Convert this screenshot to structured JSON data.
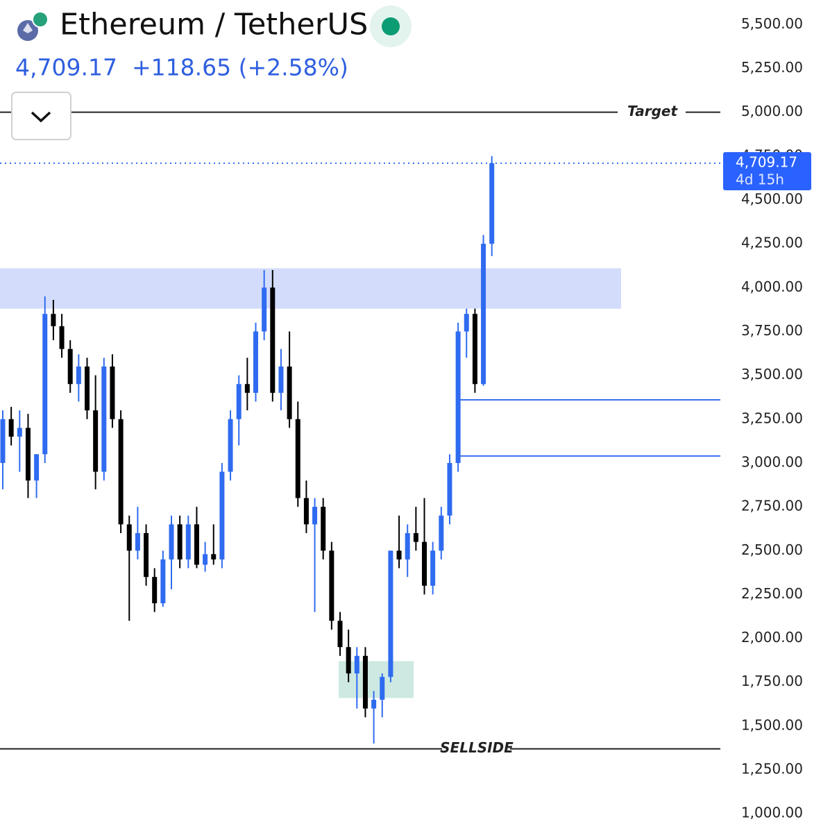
{
  "header": {
    "symbol": "Ethereum / TetherUS",
    "change": "+118.65 (+2.58%)"
  },
  "chart_data": {
    "type": "candlestick",
    "open": [
      3000,
      3250,
      3150,
      3200,
      2900,
      3050,
      3850,
      3780,
      3650,
      3450,
      3550,
      3300,
      2950,
      3550,
      3250,
      2650,
      2500,
      2600,
      2350,
      2200,
      2450,
      2650,
      2450,
      2650,
      2420,
      2480,
      2450,
      2950,
      3250,
      3450,
      3400,
      3750,
      4000,
      3400,
      3550,
      3250,
      2800,
      2650,
      2750,
      2500,
      2100,
      1950,
      1800,
      1900,
      1600,
      1650,
      1780,
      2500,
      2450,
      2600,
      2550,
      2300,
      2500,
      2700,
      3000,
      3750,
      3850,
      3450,
      4250
    ],
    "high": [
      3300,
      3320,
      3300,
      3280,
      3050,
      3950,
      3930,
      3850,
      3700,
      3620,
      3600,
      3500,
      3600,
      3620,
      3300,
      2700,
      2750,
      2650,
      2400,
      2500,
      2700,
      2700,
      2700,
      2750,
      2550,
      2650,
      3000,
      3300,
      3500,
      3600,
      3800,
      4100,
      4100,
      3650,
      3750,
      3350,
      2900,
      2800,
      2800,
      2550,
      2150,
      2050,
      1950,
      1950,
      1700,
      1800,
      2500,
      2700,
      2650,
      2750,
      2800,
      2550,
      2750,
      3050,
      3800,
      3880,
      3880,
      4300,
      4750
    ],
    "low": [
      2850,
      3100,
      2950,
      2800,
      2800,
      3000,
      3700,
      3600,
      3400,
      3350,
      3250,
      2850,
      2900,
      3200,
      2600,
      2100,
      2450,
      2300,
      2150,
      2180,
      2280,
      2400,
      2400,
      2400,
      2380,
      2420,
      2400,
      2900,
      3100,
      3300,
      3350,
      3700,
      3350,
      3300,
      3200,
      2750,
      2600,
      2150,
      2450,
      2050,
      1900,
      1750,
      1600,
      1550,
      1400,
      1550,
      1750,
      2400,
      2350,
      2500,
      2250,
      2250,
      2450,
      2650,
      2950,
      3600,
      3400,
      3440,
      4180
    ],
    "close": [
      3250,
      3150,
      3200,
      2900,
      3050,
      3850,
      3780,
      3650,
      3450,
      3550,
      3300,
      2950,
      3550,
      3250,
      2650,
      2500,
      2600,
      2350,
      2200,
      2450,
      2650,
      2450,
      2650,
      2420,
      2480,
      2450,
      2950,
      3250,
      3450,
      3400,
      3750,
      4000,
      3400,
      3550,
      3250,
      2800,
      2650,
      2750,
      2500,
      2100,
      1950,
      1800,
      1900,
      1600,
      1650,
      1780,
      2500,
      2450,
      2600,
      2550,
      2300,
      2500,
      2700,
      3000,
      3750,
      3850,
      3450,
      4250,
      4709.17
    ],
    "up_color": "#2f6bf0",
    "down_color": "#000000",
    "ylim": [
      890,
      5640
    ],
    "yticks": [
      {
        "value": 1000,
        "label": "1,000.00"
      },
      {
        "value": 1250,
        "label": "1,250.00"
      },
      {
        "value": 1500,
        "label": "1,500.00"
      },
      {
        "value": 1750,
        "label": "1,750.00"
      },
      {
        "value": 2000,
        "label": "2,000.00"
      },
      {
        "value": 2250,
        "label": "2,250.00"
      },
      {
        "value": 2500,
        "label": "2,500.00"
      },
      {
        "value": 2750,
        "label": "2,750.00"
      },
      {
        "value": 3000,
        "label": "3,000.00"
      },
      {
        "value": 3250,
        "label": "3,250.00"
      },
      {
        "value": 3500,
        "label": "3,500.00"
      },
      {
        "value": 3750,
        "label": "3,750.00"
      },
      {
        "value": 4000,
        "label": "4,000.00"
      },
      {
        "value": 4250,
        "label": "4,250.00"
      },
      {
        "value": 4500,
        "label": "4,500.00"
      },
      {
        "value": 4750,
        "label": "4,750.00"
      },
      {
        "value": 5000,
        "label": "5,000.00"
      },
      {
        "value": 5250,
        "label": "5,250.00"
      },
      {
        "value": 5500,
        "label": "5,500.00"
      }
    ],
    "last_price": {
      "value": 4709.17,
      "label": "4,709.17"
    },
    "countdown": "4d 15h",
    "zone": [
      3880,
      4110
    ],
    "zone_color": "#d3dcfb",
    "box": [
      1660,
      1870
    ],
    "box_color": "#cde9e2",
    "lines": [
      3360,
      3040
    ],
    "line_color": "#3a6ff0",
    "levels": [
      {
        "name": "Target",
        "value": 5000
      },
      {
        "name": "SELLSIDE",
        "value": 1370
      }
    ]
  }
}
